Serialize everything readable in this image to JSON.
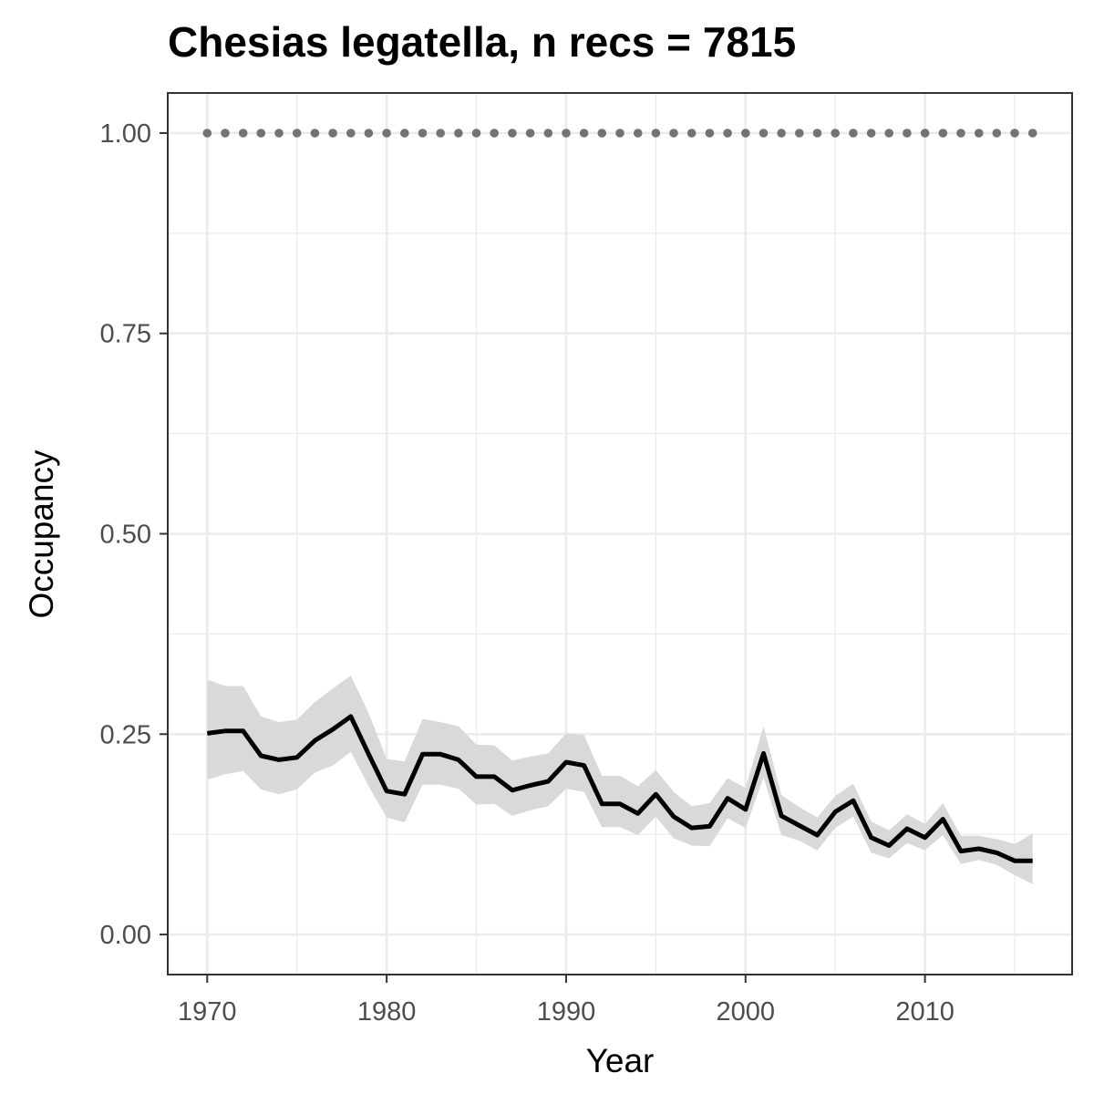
{
  "chart_data": {
    "type": "line",
    "title": "Chesias legatella, n recs = 7815",
    "xlabel": "Year",
    "ylabel": "Occupancy",
    "xlim": [
      1967.8,
      2018.2
    ],
    "ylim": [
      -0.05,
      1.05
    ],
    "x_ticks": [
      1970,
      1980,
      1990,
      2000,
      2010
    ],
    "x_tick_labels": [
      "1970",
      "1980",
      "1990",
      "2000",
      "2010"
    ],
    "y_ticks": [
      0,
      0.25,
      0.5,
      0.75,
      1.0
    ],
    "y_tick_labels": [
      "0.00",
      "0.25",
      "0.50",
      "0.75",
      "1.00"
    ],
    "grid": true,
    "colors": {
      "line": "#000000",
      "ribbon": "#d9d9d9",
      "points": "#737373",
      "grid": "#ebebeb",
      "panel_border": "#333333",
      "tick_text": "#4d4d4d"
    },
    "x": [
      1970,
      1971,
      1972,
      1973,
      1974,
      1975,
      1976,
      1977,
      1978,
      1979,
      1980,
      1981,
      1982,
      1983,
      1984,
      1985,
      1986,
      1987,
      1988,
      1989,
      1990,
      1991,
      1992,
      1993,
      1994,
      1995,
      1996,
      1997,
      1998,
      1999,
      2000,
      2001,
      2002,
      2003,
      2004,
      2005,
      2006,
      2007,
      2008,
      2009,
      2010,
      2011,
      2012,
      2013,
      2014,
      2015,
      2016
    ],
    "series": [
      {
        "values": [
          0.251,
          0.254,
          0.254,
          0.223,
          0.218,
          0.221,
          0.242,
          0.256,
          0.272,
          0.225,
          0.179,
          0.175,
          0.225,
          0.225,
          0.218,
          0.197,
          0.197,
          0.18,
          0.186,
          0.191,
          0.215,
          0.211,
          0.163,
          0.163,
          0.151,
          0.175,
          0.147,
          0.133,
          0.135,
          0.17,
          0.156,
          0.226,
          0.148,
          0.136,
          0.124,
          0.153,
          0.167,
          0.121,
          0.111,
          0.132,
          0.121,
          0.144,
          0.104,
          0.107,
          0.102,
          0.092,
          0.092
        ]
      }
    ],
    "ribbon": {
      "upper": [
        0.318,
        0.31,
        0.31,
        0.272,
        0.265,
        0.268,
        0.29,
        0.307,
        0.323,
        0.276,
        0.219,
        0.216,
        0.269,
        0.265,
        0.26,
        0.237,
        0.236,
        0.217,
        0.222,
        0.226,
        0.251,
        0.249,
        0.198,
        0.198,
        0.185,
        0.205,
        0.178,
        0.16,
        0.164,
        0.195,
        0.183,
        0.26,
        0.174,
        0.159,
        0.146,
        0.173,
        0.188,
        0.141,
        0.13,
        0.15,
        0.138,
        0.164,
        0.123,
        0.123,
        0.119,
        0.113,
        0.126
      ],
      "lower": [
        0.193,
        0.2,
        0.204,
        0.181,
        0.175,
        0.181,
        0.202,
        0.211,
        0.228,
        0.185,
        0.146,
        0.14,
        0.187,
        0.187,
        0.182,
        0.162,
        0.163,
        0.148,
        0.155,
        0.16,
        0.182,
        0.178,
        0.134,
        0.134,
        0.124,
        0.147,
        0.12,
        0.111,
        0.11,
        0.145,
        0.133,
        0.196,
        0.124,
        0.117,
        0.105,
        0.133,
        0.147,
        0.102,
        0.095,
        0.114,
        0.105,
        0.124,
        0.088,
        0.093,
        0.087,
        0.074,
        0.063
      ]
    },
    "points": {
      "x": [
        1970,
        1971,
        1972,
        1973,
        1974,
        1975,
        1976,
        1977,
        1978,
        1979,
        1980,
        1981,
        1982,
        1983,
        1984,
        1985,
        1986,
        1987,
        1988,
        1989,
        1990,
        1991,
        1992,
        1993,
        1994,
        1995,
        1996,
        1997,
        1998,
        1999,
        2000,
        2001,
        2002,
        2003,
        2004,
        2005,
        2006,
        2007,
        2008,
        2009,
        2010,
        2011,
        2012,
        2013,
        2014,
        2015,
        2016
      ],
      "y": 1.0
    }
  }
}
